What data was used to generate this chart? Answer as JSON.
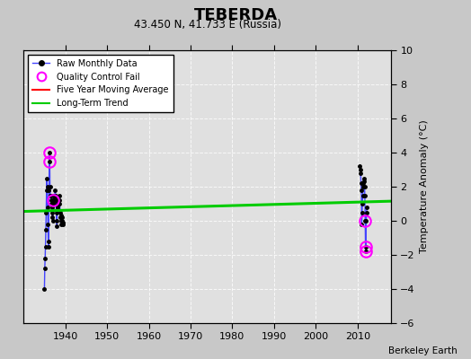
{
  "title": "TEBERDA",
  "subtitle": "43.450 N, 41.733 E (Russia)",
  "ylabel": "Temperature Anomaly (°C)",
  "watermark": "Berkeley Earth",
  "background_color": "#c8c8c8",
  "plot_bg_color": "#e0e0e0",
  "xlim": [
    1930,
    2018
  ],
  "ylim": [
    -6,
    10
  ],
  "yticks": [
    -6,
    -4,
    -2,
    0,
    2,
    4,
    6,
    8,
    10
  ],
  "xticks": [
    1940,
    1950,
    1960,
    1970,
    1980,
    1990,
    2000,
    2010
  ],
  "raw_data_1930s": {
    "years": [
      1935.0,
      1935.083,
      1935.167,
      1935.25,
      1935.333,
      1935.417,
      1935.5,
      1935.583,
      1935.667,
      1935.75,
      1935.833,
      1935.917,
      1936.0,
      1936.083,
      1936.167,
      1936.25,
      1936.333,
      1936.417,
      1936.5,
      1936.583,
      1936.667,
      1936.75,
      1936.833,
      1936.917,
      1937.0,
      1937.083,
      1937.167,
      1937.25,
      1937.333,
      1937.417,
      1937.5,
      1937.583,
      1937.667,
      1937.75,
      1937.833,
      1937.917,
      1938.0,
      1938.083,
      1938.167,
      1938.25,
      1938.333,
      1938.417,
      1938.5,
      1938.583,
      1938.667,
      1938.75,
      1938.833,
      1938.917,
      1939.0,
      1939.083,
      1939.167,
      1939.25,
      1939.333,
      1939.417
    ],
    "values": [
      -4.0,
      -2.8,
      -2.2,
      -1.5,
      -0.5,
      0.5,
      1.8,
      2.5,
      2.0,
      0.8,
      -0.2,
      -1.2,
      -1.5,
      1.8,
      3.5,
      4.0,
      2.0,
      1.5,
      1.5,
      1.2,
      1.0,
      0.8,
      0.5,
      0.2,
      0.0,
      1.2,
      1.5,
      1.2,
      1.0,
      1.5,
      1.5,
      1.8,
      1.5,
      1.2,
      0.5,
      0.0,
      -0.3,
      0.8,
      1.2,
      1.0,
      1.0,
      1.2,
      1.5,
      1.2,
      1.0,
      0.5,
      0.2,
      0.0,
      -0.2,
      0.3,
      0.2,
      0.0,
      -0.2,
      -0.1
    ]
  },
  "qc_fail_1930s": {
    "years": [
      1936.167,
      1936.25,
      1937.083
    ],
    "values": [
      3.5,
      4.0,
      1.2
    ]
  },
  "raw_data_2010s": {
    "years": [
      2010.583,
      2010.667,
      2010.75,
      2010.833,
      2010.917,
      2011.0,
      2011.083,
      2011.167,
      2011.25,
      2011.333,
      2011.417,
      2011.5,
      2011.583,
      2011.667,
      2011.75,
      2011.833,
      2011.917,
      2012.0,
      2012.083,
      2012.167,
      2012.25
    ],
    "values": [
      3.2,
      3.0,
      2.8,
      2.2,
      1.8,
      -0.2,
      0.5,
      1.0,
      1.5,
      2.0,
      2.2,
      2.5,
      2.3,
      2.0,
      1.5,
      0.0,
      -1.8,
      -1.5,
      0.0,
      0.5,
      0.8
    ]
  },
  "qc_fail_2010s": {
    "years": [
      2011.833,
      2011.917,
      2012.0
    ],
    "values": [
      0.0,
      -1.8,
      -1.5
    ]
  },
  "long_term_trend": {
    "x": [
      1930,
      2018
    ],
    "y": [
      0.55,
      1.15
    ]
  },
  "colors": {
    "raw_line": "#4444ff",
    "raw_dot": "#000000",
    "qc_fail": "#ff00ff",
    "moving_avg": "#ff0000",
    "trend": "#00cc00",
    "grid": "#ffffff"
  }
}
